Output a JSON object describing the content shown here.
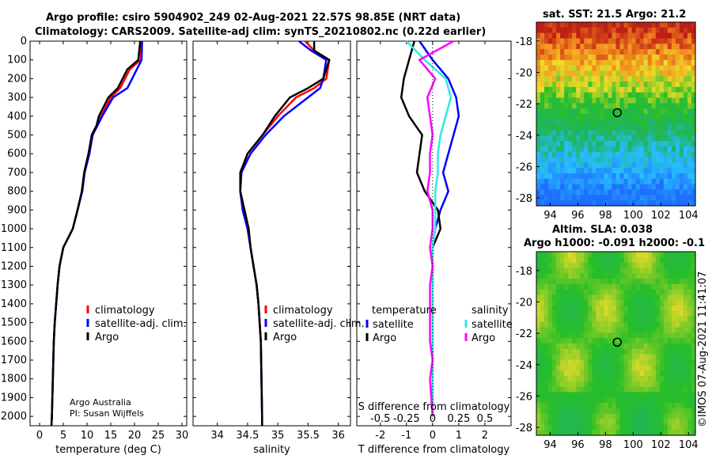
{
  "title_line1": "Argo profile: csiro 5904902_249 02-Aug-2021 22.57S 98.85E (NRT data)",
  "title_line2": "Climatology: CARS2009. Satellite-adj clim: synTS_20210802.nc (0.22d earlier)",
  "credit_line1": "Argo Australia",
  "credit_line2": "PI: Susan Wijffels",
  "timestamp": "©IMOS 07-Aug-2021 11:41:07",
  "colors": {
    "clim": "#ff0000",
    "sat": "#0000ff",
    "argo": "#000000",
    "s_sat": "#33e6e6",
    "s_argo": "#ff00ff",
    "green": "#22bb22",
    "yellow": "#f4e800"
  },
  "chart_data": [
    {
      "type": "line",
      "xlabel": "temperature (deg C)",
      "xlim": [
        -2,
        31
      ],
      "xticks": [
        0,
        5,
        10,
        15,
        20,
        25,
        30
      ],
      "ylim": [
        2050,
        0
      ],
      "yticks": [
        0,
        100,
        200,
        300,
        400,
        500,
        600,
        700,
        800,
        900,
        1000,
        1100,
        1200,
        1300,
        1400,
        1500,
        1600,
        1700,
        1800,
        1900,
        2000
      ],
      "legend": [
        "climatology",
        "satellite-adj. clim.",
        "Argo"
      ],
      "series": [
        {
          "name": "climatology",
          "x": [
            21.5,
            21.3,
            19,
            17,
            15,
            13,
            12,
            11,
            10.5,
            9.5,
            9,
            8,
            7,
            5,
            4.2,
            3.8,
            3.5,
            3.2,
            3.0,
            2.8,
            2.6,
            2.5
          ],
          "y": [
            0,
            100,
            150,
            250,
            300,
            400,
            450,
            500,
            600,
            700,
            800,
            900,
            1000,
            1100,
            1200,
            1300,
            1400,
            1500,
            1600,
            1800,
            2000,
            2050
          ]
        },
        {
          "name": "satellite-adj. clim.",
          "x": [
            21.6,
            21.5,
            20.5,
            18.5,
            15.5,
            13.2,
            12.2,
            11.2,
            10.5,
            9.5,
            9,
            8,
            7,
            5,
            4.2,
            3.8,
            3.5,
            3.2,
            3.0,
            2.8,
            2.6,
            2.5
          ],
          "y": [
            0,
            100,
            150,
            250,
            300,
            400,
            450,
            500,
            600,
            700,
            800,
            900,
            1000,
            1100,
            1200,
            1300,
            1400,
            1500,
            1600,
            1800,
            2000,
            2050
          ]
        },
        {
          "name": "Argo",
          "x": [
            21.2,
            20.8,
            18.5,
            16.5,
            14.5,
            12.5,
            12,
            11,
            10.3,
            9.4,
            8.9,
            8,
            7,
            5,
            4.2,
            3.8,
            3.5,
            3.2,
            3.0,
            2.8,
            2.6,
            2.5
          ],
          "y": [
            0,
            100,
            150,
            250,
            300,
            400,
            450,
            500,
            600,
            700,
            800,
            900,
            1000,
            1100,
            1200,
            1300,
            1400,
            1500,
            1600,
            1800,
            2000,
            2050
          ]
        }
      ]
    },
    {
      "type": "line",
      "xlabel": "salinity",
      "xlim": [
        33.6,
        36.2
      ],
      "xticks": [
        34,
        34.5,
        35,
        35.5,
        36
      ],
      "ylim": [
        2050,
        0
      ],
      "legend": [
        "climatology",
        "satellite-adj. clim.",
        "Argo"
      ],
      "series": [
        {
          "name": "climatology",
          "x": [
            35.45,
            35.6,
            35.85,
            35.8,
            35.6,
            35.3,
            35,
            34.75,
            34.5,
            34.4,
            34.38,
            34.42,
            34.5,
            34.55,
            34.6,
            34.65,
            34.68,
            34.7,
            34.72,
            34.73,
            34.74,
            34.74
          ],
          "y": [
            0,
            50,
            100,
            200,
            250,
            300,
            400,
            500,
            600,
            700,
            800,
            900,
            1000,
            1100,
            1200,
            1300,
            1400,
            1500,
            1600,
            1800,
            2000,
            2050
          ]
        },
        {
          "name": "satellite-adj. clim.",
          "x": [
            35.35,
            35.55,
            35.8,
            35.75,
            35.7,
            35.5,
            35.1,
            34.8,
            34.55,
            34.4,
            34.38,
            34.42,
            34.5,
            34.55,
            34.6,
            34.65,
            34.68,
            34.7,
            34.72,
            34.73,
            34.74,
            34.74
          ],
          "y": [
            0,
            50,
            100,
            200,
            250,
            300,
            400,
            500,
            600,
            700,
            800,
            900,
            1000,
            1100,
            1200,
            1300,
            1400,
            1500,
            1600,
            1800,
            2000,
            2050
          ]
        },
        {
          "name": "Argo",
          "x": [
            35.6,
            35.6,
            35.85,
            35.75,
            35.5,
            35.2,
            34.95,
            34.75,
            34.5,
            34.38,
            34.38,
            34.45,
            34.52,
            34.55,
            34.6,
            34.65,
            34.68,
            34.7,
            34.72,
            34.73,
            34.74,
            34.74
          ],
          "y": [
            0,
            50,
            100,
            200,
            250,
            300,
            400,
            500,
            600,
            700,
            800,
            900,
            1000,
            1100,
            1200,
            1300,
            1400,
            1500,
            1600,
            1800,
            2000,
            2050
          ]
        }
      ]
    },
    {
      "type": "line",
      "xlabel": "T difference from climatology",
      "top_label": "S difference from climatology",
      "xlim": [
        -2.9,
        3.0
      ],
      "xticks": [
        -2,
        -1,
        0,
        1,
        2
      ],
      "s_ticks": [
        "-0.5",
        "-0.25",
        "0",
        "0.25",
        "0.5"
      ],
      "s_tick_x": [
        -2,
        -1,
        0,
        1,
        2
      ],
      "ylim": [
        2050,
        0
      ],
      "legend_titles": [
        "temperature",
        "salinity"
      ],
      "legend_t": [
        "satellite",
        "Argo"
      ],
      "legend_s": [
        "satellite",
        "Argo"
      ],
      "series": [
        {
          "name": "T satellite",
          "x": [
            -0.5,
            0,
            0.6,
            0.9,
            1,
            0.8,
            0.6,
            0.4,
            0.6,
            0.3,
            0.1,
            0,
            0,
            0,
            0,
            0,
            0,
            0,
            0,
            0
          ],
          "y": [
            0,
            100,
            200,
            300,
            400,
            500,
            600,
            700,
            800,
            900,
            1000,
            1100,
            1200,
            1300,
            1400,
            1500,
            1600,
            1700,
            1800,
            2000
          ]
        },
        {
          "name": "T Argo",
          "x": [
            -0.7,
            -0.9,
            -1.1,
            -1.2,
            -0.9,
            -0.4,
            -0.5,
            -0.6,
            -0.3,
            0.2,
            0.3,
            0,
            0,
            0,
            0,
            0,
            0,
            0,
            0,
            0
          ],
          "y": [
            0,
            100,
            200,
            300,
            400,
            500,
            600,
            700,
            800,
            900,
            1000,
            1100,
            1200,
            1300,
            1400,
            1500,
            1600,
            1700,
            1800,
            2000
          ]
        },
        {
          "name": "S satellite",
          "x": [
            -1,
            -0.3,
            0.5,
            0.7,
            0.5,
            0.3,
            0.2,
            0.2,
            0.1,
            0.1,
            0.1,
            0,
            0,
            0,
            0,
            0,
            0,
            0,
            0,
            0
          ],
          "y": [
            0,
            100,
            200,
            300,
            400,
            500,
            600,
            700,
            800,
            900,
            1000,
            1100,
            1200,
            1300,
            1400,
            1500,
            1600,
            1700,
            1800,
            2000
          ]
        },
        {
          "name": "S Argo",
          "x": [
            0.8,
            -0.5,
            0.1,
            -0.2,
            -0.1,
            0,
            -0.1,
            -0.1,
            -0.2,
            0,
            0,
            -0.1,
            0,
            -0.1,
            -0.1,
            -0.1,
            -0.1,
            0,
            -0.1,
            0
          ],
          "y": [
            0,
            100,
            200,
            300,
            400,
            500,
            600,
            700,
            800,
            900,
            1000,
            1100,
            1200,
            1300,
            1400,
            1500,
            1600,
            1700,
            1800,
            2000
          ]
        }
      ]
    },
    {
      "type": "heatmap",
      "title": "sat. SST: 21.5 Argo: 21.2",
      "xticks": [
        94,
        96,
        98,
        100,
        102,
        104
      ],
      "yticks": [
        -18,
        -20,
        -22,
        -24,
        -26,
        -28
      ],
      "xlim": [
        93,
        104.5
      ],
      "ylim": [
        -28.5,
        -16.8
      ],
      "marker": {
        "lon": 98.85,
        "lat": -22.57
      }
    },
    {
      "type": "heatmap",
      "title_line1": "Altim. SLA: 0.038",
      "title_line2": "Argo h1000: -0.091 h2000: -0.1",
      "xticks": [
        94,
        96,
        98,
        100,
        102,
        104
      ],
      "yticks": [
        -18,
        -20,
        -22,
        -24,
        -26,
        -28
      ],
      "xlim": [
        93,
        104.5
      ],
      "ylim": [
        -28.5,
        -16.8
      ],
      "marker": {
        "lon": 98.85,
        "lat": -22.57
      }
    }
  ]
}
